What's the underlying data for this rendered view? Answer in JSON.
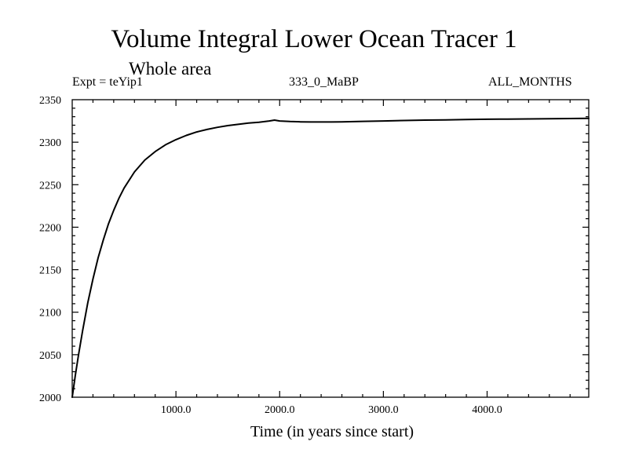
{
  "chart_data": {
    "type": "line",
    "title": "Volume Integral Lower Ocean Tracer 1",
    "subtitle": "Whole area",
    "expt_label": "Expt = teYip1",
    "period_label": "333_0_MaBP",
    "months_label": "ALL_MONTHS",
    "xlabel": "Time (in years since start)",
    "ylabel": "",
    "xlim": [
      0,
      4980
    ],
    "ylim": [
      2000,
      2350
    ],
    "xticks": [
      1000,
      2000,
      3000,
      4000
    ],
    "xtick_labels": [
      "1000.0",
      "2000.0",
      "3000.0",
      "4000.0"
    ],
    "yticks": [
      2000,
      2050,
      2100,
      2150,
      2200,
      2250,
      2300,
      2350
    ],
    "ytick_labels": [
      "2000",
      "2050",
      "2100",
      "2150",
      "2200",
      "2250",
      "2300",
      "2350"
    ],
    "series": [
      {
        "name": "Tracer 1",
        "x": [
          0,
          30,
          60,
          100,
          150,
          200,
          250,
          300,
          350,
          400,
          450,
          500,
          600,
          700,
          800,
          900,
          1000,
          1100,
          1200,
          1300,
          1400,
          1500,
          1600,
          1700,
          1800,
          1900,
          1950,
          2000,
          2100,
          2200,
          2300,
          2400,
          2500,
          2600,
          2800,
          3000,
          3200,
          3400,
          3600,
          3800,
          4000,
          4200,
          4400,
          4600,
          4800,
          4980
        ],
        "values": [
          2000,
          2026,
          2049,
          2078,
          2111,
          2139,
          2164,
          2185,
          2204,
          2220,
          2234,
          2246,
          2265,
          2279,
          2289,
          2297,
          2303,
          2308,
          2312,
          2315,
          2317.5,
          2319.5,
          2321,
          2322.5,
          2323.5,
          2325,
          2326,
          2325,
          2324.3,
          2324,
          2323.8,
          2323.8,
          2323.8,
          2324,
          2324.5,
          2325,
          2325.5,
          2326,
          2326.3,
          2326.6,
          2327,
          2327.2,
          2327.4,
          2327.6,
          2327.8,
          2328
        ]
      }
    ],
    "grid": false,
    "legend": "none"
  }
}
